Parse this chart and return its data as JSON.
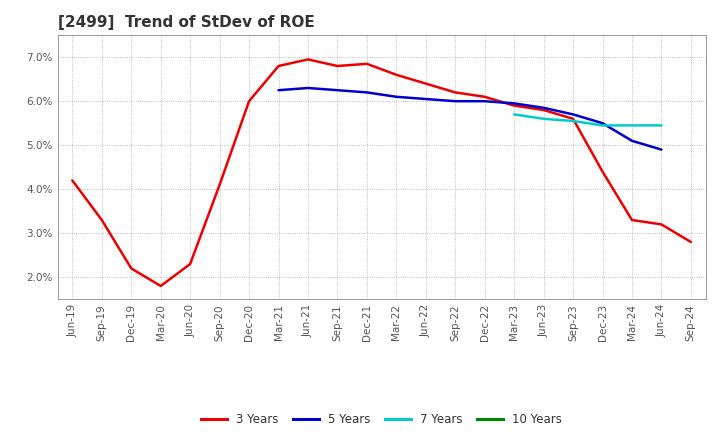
{
  "title": "[2499]  Trend of StDev of ROE",
  "background_color": "#ffffff",
  "plot_bg_color": "#ffffff",
  "grid_color": "#aaaaaa",
  "ylim": [
    0.015,
    0.075
  ],
  "yticks": [
    0.02,
    0.03,
    0.04,
    0.05,
    0.06,
    0.07
  ],
  "x_labels": [
    "Jun-19",
    "Sep-19",
    "Dec-19",
    "Mar-20",
    "Jun-20",
    "Sep-20",
    "Dec-20",
    "Mar-21",
    "Jun-21",
    "Sep-21",
    "Dec-21",
    "Mar-22",
    "Jun-22",
    "Sep-22",
    "Dec-22",
    "Mar-23",
    "Jun-23",
    "Sep-23",
    "Dec-23",
    "Mar-24",
    "Jun-24",
    "Sep-24"
  ],
  "series": {
    "3 Years": {
      "color": "#ee0000",
      "linewidth": 1.8,
      "data": [
        0.042,
        0.033,
        0.022,
        0.018,
        0.023,
        0.041,
        0.06,
        0.068,
        0.0695,
        0.068,
        0.0685,
        0.066,
        0.064,
        0.062,
        0.061,
        0.059,
        0.058,
        0.056,
        0.044,
        0.033,
        0.032,
        0.028
      ]
    },
    "5 Years": {
      "color": "#0000cc",
      "linewidth": 1.8,
      "data": [
        null,
        null,
        null,
        null,
        null,
        null,
        null,
        0.0625,
        0.063,
        0.0625,
        0.062,
        0.061,
        0.0605,
        0.06,
        0.06,
        0.0595,
        0.0585,
        0.057,
        0.055,
        0.051,
        0.049,
        null
      ]
    },
    "7 Years": {
      "color": "#00cccc",
      "linewidth": 1.8,
      "data": [
        null,
        null,
        null,
        null,
        null,
        null,
        null,
        null,
        null,
        null,
        null,
        null,
        null,
        null,
        null,
        0.057,
        0.056,
        0.0555,
        0.0545,
        0.0545,
        0.0545,
        null
      ]
    },
    "10 Years": {
      "color": "#008800",
      "linewidth": 1.8,
      "data": [
        null,
        null,
        null,
        null,
        null,
        null,
        null,
        null,
        null,
        null,
        null,
        null,
        null,
        null,
        null,
        null,
        null,
        null,
        null,
        null,
        null,
        null
      ]
    }
  },
  "legend_labels": [
    "3 Years",
    "5 Years",
    "7 Years",
    "10 Years"
  ],
  "legend_colors": [
    "#ee0000",
    "#0000cc",
    "#00cccc",
    "#008800"
  ],
  "title_color": "#333333",
  "tick_color": "#555555",
  "tick_fontsize": 7.5,
  "title_fontsize": 11
}
